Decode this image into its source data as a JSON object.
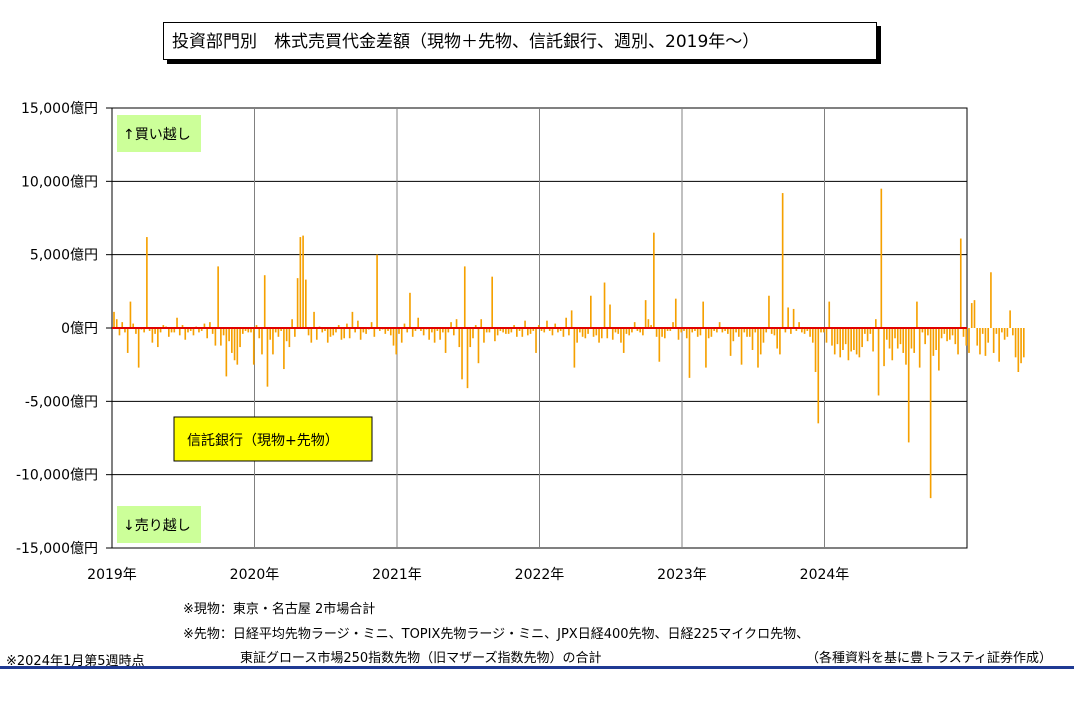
{
  "title": "投資部門別　株式売買代金差額（現物＋先物、信託銀行、週別、2019年～）",
  "notes": {
    "spot": "※現物：東京・名古屋 2市場合計",
    "futures_line1": "※先物：日経平均先物ラージ・ミニ、TOPIX先物ラージ・ミニ、JPX日経400先物、日経225マイクロ先物、",
    "futures_line2": "東証グロース市場250指数先物（旧マザーズ指数先物）の合計",
    "as_of": "※2024年1月第5週時点",
    "source": "（各種資料を基に豊トラスティ証券作成）"
  },
  "colors": {
    "bar": "#f5a000",
    "zero_line": "#e00000",
    "buy_label_bg": "#ccff99",
    "legend_bg": "#ffff00"
  },
  "chart_data": {
    "type": "bar",
    "ylim": [
      -15000,
      15000
    ],
    "y_ticks": [
      15000,
      10000,
      5000,
      0,
      -5000,
      -10000,
      -15000
    ],
    "y_tick_labels": [
      "15,000億円",
      "10,000億円",
      "5,000億円",
      "0億円",
      "-5,000億円",
      "-10,000億円",
      "-15,000億円"
    ],
    "x_tick_labels": [
      "2019年",
      "2020年",
      "2021年",
      "2022年",
      "2023年",
      "2024年"
    ],
    "xlim_years": [
      2019,
      2025
    ],
    "grid": true,
    "annotation_buy": "↑買い越し",
    "annotation_sell": "↓売り越し",
    "legend_label": "信託銀行（現物+先物）",
    "series": [
      {
        "week_interval": "weekly",
        "values": [
          1100,
          600,
          -500,
          400,
          -300,
          -1700,
          1800,
          300,
          -400,
          -2700,
          -100,
          -300,
          6200,
          -200,
          -1000,
          -400,
          -1300,
          -300,
          200,
          100,
          -600,
          -300,
          -300,
          700,
          -500,
          200,
          -800,
          -300,
          -200,
          -500,
          100,
          -300,
          -200,
          300,
          -700,
          400,
          -400,
          -1200,
          4200,
          -1200,
          -500,
          -3300,
          -900,
          -1700,
          -2200,
          -2500,
          -1300,
          -400,
          -200,
          -300,
          -300,
          -2500,
          200,
          -700,
          -1800,
          3600,
          -4000,
          -800,
          -1800,
          -300,
          -600,
          -200,
          -2800,
          -900,
          -1300,
          600,
          -600,
          3400,
          6200,
          6300,
          3300,
          -500,
          -1000,
          1100,
          -800,
          100,
          -300,
          -200,
          -1000,
          -600,
          -500,
          -300,
          200,
          -800,
          -700,
          300,
          -700,
          1100,
          -300,
          500,
          -800,
          -300,
          -400,
          -100,
          400,
          -600,
          5000,
          -200,
          -100,
          -400,
          -200,
          -500,
          -1200,
          -1800,
          -400,
          -1000,
          300,
          -300,
          2400,
          -600,
          -200,
          700,
          -200,
          -500,
          -100,
          -800,
          -300,
          -1000,
          -200,
          -800,
          -300,
          -1700,
          -300,
          400,
          -500,
          600,
          -1300,
          -3500,
          4200,
          -4100,
          -1300,
          -700,
          200,
          -2400,
          600,
          -1000,
          -300,
          -300,
          3500,
          -900,
          -500,
          -200,
          -300,
          -400,
          -400,
          -300,
          200,
          -600,
          -200,
          -600,
          500,
          -500,
          -400,
          -200,
          -1700,
          200,
          -200,
          -300,
          500,
          -200,
          -500,
          300,
          -300,
          -200,
          -600,
          700,
          -500,
          1200,
          -2700,
          -1000,
          -300,
          -600,
          -700,
          -400,
          2200,
          -600,
          -500,
          -1000,
          -700,
          3100,
          -700,
          1600,
          -800,
          -300,
          -400,
          -1000,
          -1700,
          -400,
          -500,
          -300,
          400,
          -200,
          -300,
          -500,
          1900,
          600,
          200,
          6500,
          -600,
          -2300,
          -600,
          -700,
          -200,
          -200,
          400,
          2000,
          -800,
          -300,
          -200,
          -700,
          -3400,
          -300,
          -200,
          -600,
          -500,
          1800,
          -2700,
          -700,
          -600,
          -200,
          -300,
          400,
          -300,
          -200,
          -400,
          -1900,
          -900,
          -300,
          -600,
          -2500,
          -300,
          -600,
          -600,
          -1500,
          -300,
          -2700,
          -1800,
          -1000,
          -300,
          2200,
          -400,
          -500,
          -1400,
          -1800,
          9200,
          -300,
          1400,
          -400,
          1300,
          -200,
          400,
          -300,
          -400,
          -200,
          -600,
          -1000,
          -3000,
          -6500,
          -300,
          -300,
          -1000,
          1800,
          -1200,
          -1800,
          -1100,
          -2000,
          -1500,
          -1100,
          -2200,
          -1600,
          -1500,
          -1800,
          -2000,
          -1300,
          -400,
          -900,
          -400,
          -1600,
          600,
          -4600,
          9500,
          -2600,
          -800,
          -1400,
          -2200,
          -700,
          -1400,
          -1100,
          -1700,
          -2500,
          -7800,
          -1400,
          -1700,
          1800,
          -2700,
          -300,
          -1100,
          -500,
          -11600,
          -1900,
          -1500,
          -2900,
          -700,
          -400,
          -900,
          -800,
          -500,
          -1100,
          -1800,
          6100,
          -600,
          -1200,
          -1700,
          1700,
          1900,
          -1200,
          -1800,
          -400,
          -1900,
          -1000,
          3800,
          -1700,
          -400,
          -2300,
          -300,
          -800,
          -600,
          1200,
          -500,
          -2000,
          -3000,
          -2400,
          -2000
        ]
      }
    ]
  }
}
